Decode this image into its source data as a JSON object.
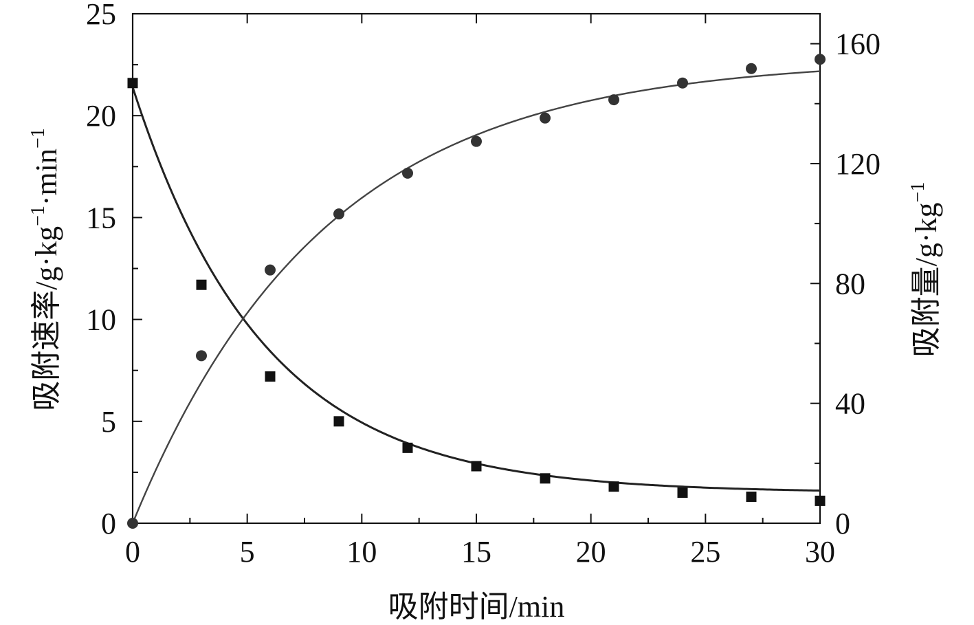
{
  "chart_data": {
    "type": "scatter",
    "xlabel": "吸附时间/min",
    "ylabel_left": "吸附速率/g·kg",
    "ylabel_left_sup1": "−1",
    "ylabel_left_mid": "·min",
    "ylabel_left_sup2": "−1",
    "ylabel_right": "吸附量/g·kg",
    "ylabel_right_sup": "−1",
    "xlim": [
      0,
      30
    ],
    "ylim_left": [
      0,
      25
    ],
    "ylim_right": [
      0,
      170
    ],
    "x_ticks": [
      0,
      5,
      10,
      15,
      20,
      25,
      30
    ],
    "y_left_ticks": [
      0,
      5,
      10,
      15,
      20,
      25
    ],
    "y_right_ticks": [
      0,
      40,
      80,
      120,
      160
    ],
    "grid": false,
    "series": [
      {
        "axis": "left",
        "marker": "square",
        "x": [
          0,
          3,
          6,
          9,
          12,
          15,
          18,
          21,
          24,
          27,
          30
        ],
        "y": [
          21.6,
          11.7,
          7.2,
          5.0,
          3.7,
          2.8,
          2.2,
          1.8,
          1.5,
          1.3,
          1.1
        ]
      },
      {
        "axis": "right",
        "marker": "circle",
        "x": [
          0,
          3,
          6,
          9,
          12,
          15,
          18,
          21,
          24,
          27,
          30
        ],
        "y": [
          0,
          55.9,
          84.5,
          103.2,
          116.8,
          127.4,
          135.2,
          141.3,
          146.9,
          151.7,
          154.8
        ]
      }
    ],
    "fits": [
      {
        "axis": "left",
        "model": "exponential_decay",
        "y0": 21.4,
        "plateau": 1.5,
        "tau": 5.7
      },
      {
        "axis": "right",
        "model": "exponential_rise",
        "plateau": 155,
        "tau": 8.3
      }
    ],
    "colors": {
      "axis": "#111111",
      "marker": "#111111",
      "fit": "#222222"
    }
  }
}
